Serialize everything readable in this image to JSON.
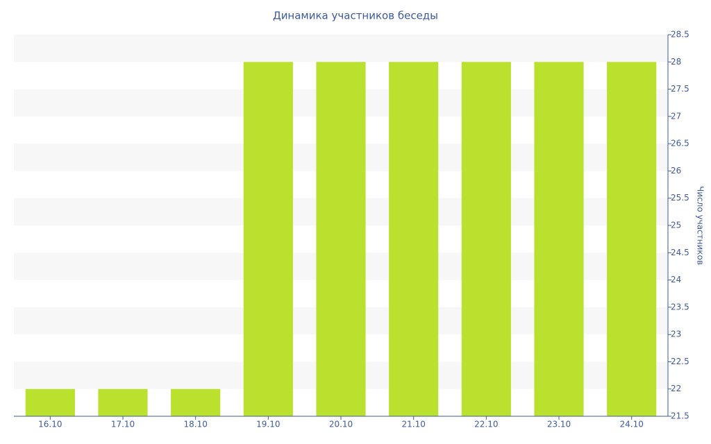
{
  "chart_data": {
    "type": "bar",
    "title": "Динамика участников беседы",
    "y_axis_label": "Число участников",
    "categories": [
      "16.10",
      "17.10",
      "18.10",
      "19.10",
      "20.10",
      "21.10",
      "22.10",
      "23.10",
      "24.10"
    ],
    "values": [
      22,
      22,
      22,
      28,
      28,
      28,
      28,
      28,
      28
    ],
    "color": "#bbe12f",
    "ylim": [
      21.5,
      28.5
    ],
    "yticks": [
      21.5,
      22,
      22.5,
      23,
      23.5,
      24,
      24.5,
      25,
      25.5,
      26,
      26.5,
      27,
      27.5,
      28,
      28.5
    ],
    "y_axis_side": "right",
    "grid": "bands"
  }
}
